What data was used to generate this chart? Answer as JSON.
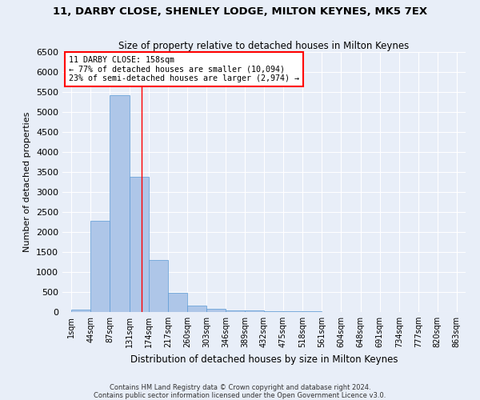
{
  "title_line1": "11, DARBY CLOSE, SHENLEY LODGE, MILTON KEYNES, MK5 7EX",
  "title_line2": "Size of property relative to detached houses in Milton Keynes",
  "xlabel": "Distribution of detached houses by size in Milton Keynes",
  "ylabel": "Number of detached properties",
  "footer_line1": "Contains HM Land Registry data © Crown copyright and database right 2024.",
  "footer_line2": "Contains public sector information licensed under the Open Government Licence v3.0.",
  "annotation_line1": "11 DARBY CLOSE: 158sqm",
  "annotation_line2": "← 77% of detached houses are smaller (10,094)",
  "annotation_line3": "23% of semi-detached houses are larger (2,974) →",
  "property_size": 158,
  "bar_color": "#aec6e8",
  "bar_edge_color": "#5b9bd5",
  "vline_color": "red",
  "background_color": "#e8eef8",
  "grid_color": "#ffffff",
  "bin_edges": [
    1,
    44,
    87,
    131,
    174,
    217,
    260,
    303,
    346,
    389,
    432,
    475,
    518,
    561,
    604,
    648,
    691,
    734,
    777,
    820,
    863
  ],
  "bin_labels": [
    "1sqm",
    "44sqm",
    "87sqm",
    "131sqm",
    "174sqm",
    "217sqm",
    "260sqm",
    "303sqm",
    "346sqm",
    "389sqm",
    "432sqm",
    "475sqm",
    "518sqm",
    "561sqm",
    "604sqm",
    "648sqm",
    "691sqm",
    "734sqm",
    "777sqm",
    "820sqm",
    "863sqm"
  ],
  "bar_heights": [
    70,
    2280,
    5420,
    3380,
    1310,
    475,
    160,
    75,
    50,
    35,
    25,
    20,
    15,
    10,
    8,
    6,
    4,
    3,
    2,
    1
  ],
  "ylim": [
    0,
    6500
  ],
  "yticks": [
    0,
    500,
    1000,
    1500,
    2000,
    2500,
    3000,
    3500,
    4000,
    4500,
    5000,
    5500,
    6000,
    6500
  ]
}
